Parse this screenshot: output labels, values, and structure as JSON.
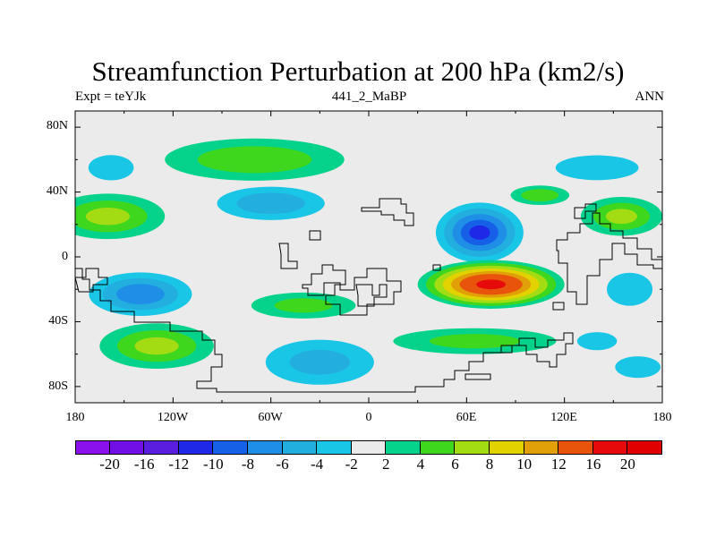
{
  "title": "Streamfunction Perturbation at 200 hPa (km2/s)",
  "subtitle_left": "Expt = teYJk",
  "subtitle_center": "441_2_MaBP",
  "subtitle_right": "ANN",
  "chart_data": {
    "type": "heatmap",
    "projection": "cylindrical-equidistant",
    "xlim": [
      -180,
      180
    ],
    "ylim": [
      -90,
      90
    ],
    "x_ticks": [
      "180",
      "120W",
      "60W",
      "0",
      "60E",
      "120E",
      "180"
    ],
    "y_ticks": [
      "80N",
      "40N",
      "0",
      "40S",
      "80S"
    ],
    "colorbar": {
      "levels": [
        "-20",
        "-16",
        "-12",
        "-10",
        "-8",
        "-6",
        "-4",
        "-2",
        "2",
        "4",
        "6",
        "8",
        "10",
        "12",
        "16",
        "20"
      ],
      "colors": [
        "#8a10ec",
        "#7010e6",
        "#5a1ee0",
        "#1e28e6",
        "#1560e6",
        "#1e8ee6",
        "#23aee0",
        "#19c6e6",
        "#ebebeb",
        "#05d38c",
        "#3fd61e",
        "#a4dc13",
        "#e2d200",
        "#e19f08",
        "#e9540d",
        "#e60a0a",
        "#e00000"
      ]
    },
    "features": [
      {
        "name": "south-pacific-low",
        "lon": -140,
        "lat": -23,
        "lon_r": 40,
        "lat_r": 17,
        "value": -9
      },
      {
        "name": "north-pacific-high",
        "lon": -160,
        "lat": 25,
        "lon_r": 35,
        "lat_r": 14,
        "value": 6
      },
      {
        "name": "north-pacific-arc",
        "lon": -70,
        "lat": 60,
        "lon_r": 55,
        "lat_r": 13,
        "value": 5
      },
      {
        "name": "east-pacific-low",
        "lon": -60,
        "lat": 33,
        "lon_r": 45,
        "lat_r": 14,
        "value": -7
      },
      {
        "name": "africa-asia-low",
        "lon": 68,
        "lat": 15,
        "lon_r": 32,
        "lat_r": 22,
        "value": -12
      },
      {
        "name": "indian-ocean-high",
        "lon": 75,
        "lat": -17,
        "lon_r": 45,
        "lat_r": 15,
        "value": 17
      },
      {
        "name": "north-atlantic-low",
        "lon": -158,
        "lat": 55,
        "lon_r": 25,
        "lat_r": 14,
        "value": -4
      },
      {
        "name": "north-asia-low",
        "lon": 140,
        "lat": 55,
        "lon_r": 40,
        "lat_r": 12,
        "value": -5
      },
      {
        "name": "west-pacific-high",
        "lon": 155,
        "lat": 25,
        "lon_r": 25,
        "lat_r": 12,
        "value": 6
      },
      {
        "name": "south-pacific-east-low",
        "lon": 160,
        "lat": -20,
        "lon_r": 22,
        "lat_r": 16,
        "value": -5
      },
      {
        "name": "southern-high-a",
        "lon": -130,
        "lat": -55,
        "lon_r": 35,
        "lat_r": 14,
        "value": 6
      },
      {
        "name": "southern-low",
        "lon": -30,
        "lat": -65,
        "lon_r": 48,
        "lat_r": 20,
        "value": -6
      },
      {
        "name": "southern-high-b",
        "lon": 65,
        "lat": -52,
        "lon_r": 50,
        "lat_r": 8,
        "value": 4
      },
      {
        "name": "southern-low-b",
        "lon": 140,
        "lat": -52,
        "lon_r": 22,
        "lat_r": 10,
        "value": -4
      },
      {
        "name": "southern-low-c",
        "lon": 165,
        "lat": -68,
        "lon_r": 25,
        "lat_r": 12,
        "value": -4
      },
      {
        "name": "tropical-high-atlantic",
        "lon": -40,
        "lat": -30,
        "lon_r": 32,
        "lat_r": 8,
        "value": 4
      },
      {
        "name": "arabian-high",
        "lon": 105,
        "lat": 38,
        "lon_r": 18,
        "lat_r": 6,
        "value": 5
      }
    ]
  }
}
